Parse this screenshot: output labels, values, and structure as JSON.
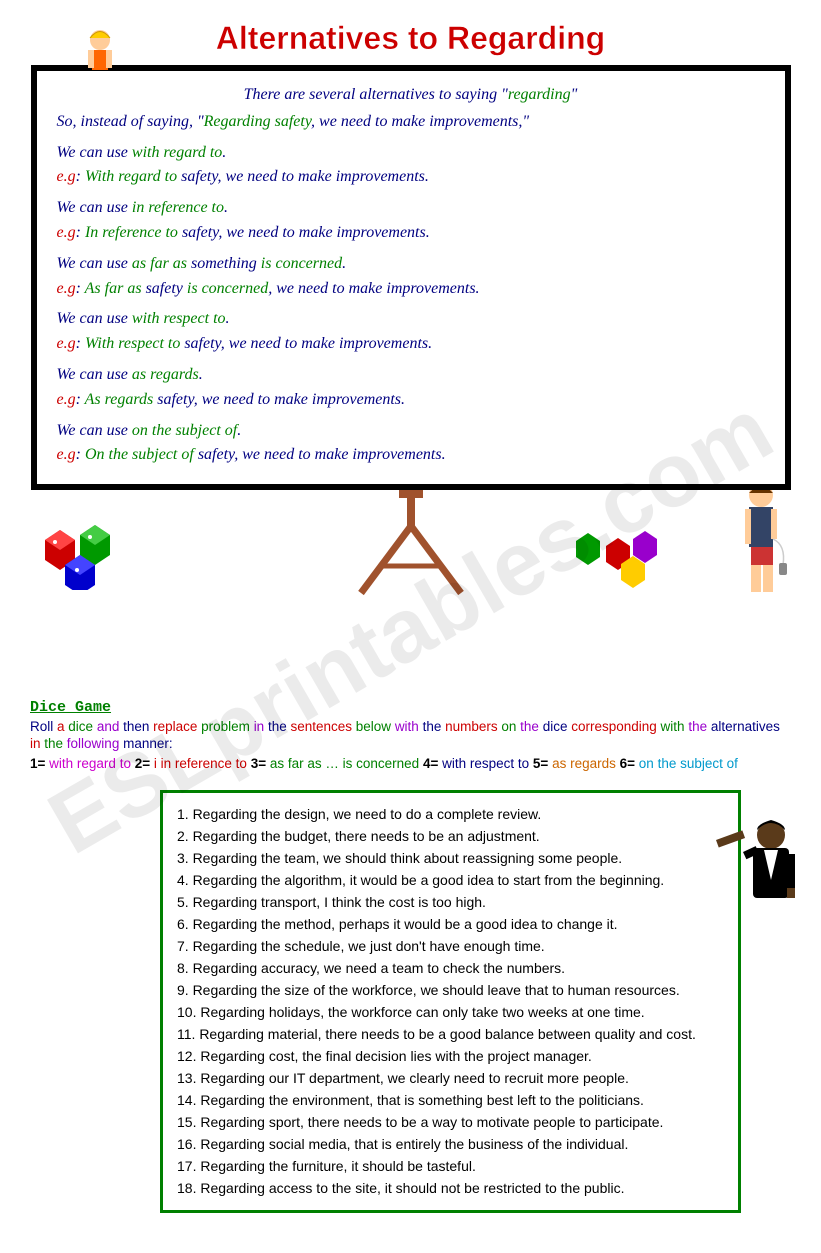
{
  "title": "Alternatives to Regarding",
  "watermark": "ESLprintables.com",
  "intro_prefix": "There are several alternatives to saying \"",
  "intro_keyword": "regarding",
  "intro_suffix": "\"",
  "example_lead": "So, instead of saying, \"",
  "example_green": "Regarding safety",
  "example_rest": ", we need to make improvements,\"",
  "alts": [
    {
      "lead_a": "We can use ",
      "phrase": "with regard to",
      "lead_b": ".",
      "eg_label": "e.g",
      "eg_green": "With regard to",
      "eg_rest": " safety, we need to make improvements."
    },
    {
      "lead_a": "We can use ",
      "phrase": "in reference to",
      "lead_b": ".",
      "eg_label": "e.g",
      "eg_green": "In reference to",
      "eg_rest": " safety, we need to make improvements."
    },
    {
      "lead_a": "We can use ",
      "phrase": "as far as",
      "mid": " something ",
      "phrase2": "is concerned",
      "lead_b": ".",
      "eg_label": "e.g",
      "eg_green": "As far as",
      "eg_mid": " safety ",
      "eg_green2": "is concerned",
      "eg_rest": ", we need to make improvements."
    },
    {
      "lead_a": "We can use ",
      "phrase": "with respect to",
      "lead_b": ".",
      "eg_label": "e.g",
      "eg_green": "With respect to",
      "eg_rest": " safety, we need to make improvements."
    },
    {
      "lead_a": "We can use ",
      "phrase": "as regards",
      "lead_b": ".",
      "eg_label": "e.g",
      "eg_green": "As regards",
      "eg_rest": " safety, we need to make improvements."
    },
    {
      "lead_a": "We can use ",
      "phrase": "on the subject of",
      "lead_b": ".",
      "eg_label": "e.g",
      "eg_green": "On the subject of",
      "eg_rest": " safety, we need to make improvements."
    }
  ],
  "dice": {
    "title": "Dice Game",
    "instr_parts": [
      "Roll ",
      "a ",
      "dice ",
      "and ",
      "then ",
      "replace ",
      "problem ",
      "in ",
      "the ",
      "sentences ",
      "below ",
      "with ",
      "the ",
      "numbers ",
      "on ",
      "the ",
      "dice ",
      "corresponding ",
      "with ",
      "the ",
      "alternatives ",
      "in ",
      "the ",
      "following ",
      "manner:"
    ],
    "instr_colors": [
      "#000080",
      "#cc0000",
      "#008000",
      "#9900cc",
      "#000080",
      "#cc0000",
      "#008000",
      "#9900cc",
      "#000080",
      "#cc0000",
      "#008000",
      "#9900cc",
      "#000080",
      "#cc0000",
      "#008000",
      "#9900cc",
      "#000080",
      "#cc0000",
      "#008000",
      "#9900cc",
      "#000080",
      "#cc0000",
      "#008000",
      "#9900cc",
      "#000080"
    ],
    "key": [
      {
        "n": "1=",
        "t": "  with regard to",
        "c": "#cc00cc"
      },
      {
        "n": "2=",
        "t": " i in reference to",
        "c": "#cc0000"
      },
      {
        "n": "3=",
        "t": " as far as … is concerned",
        "c": "#008000"
      },
      {
        "n": "4=",
        "t": " with respect to",
        "c": "#000080"
      },
      {
        "n": "5=",
        "t": " as regards",
        "c": "#cc6600"
      },
      {
        "n": "6=",
        "t": " on the subject of",
        "c": "#0099cc"
      }
    ]
  },
  "sentences": [
    "1. Regarding the design, we need to do a complete review.",
    "2. Regarding the budget, there needs to be an adjustment.",
    "3. Regarding the team, we should think about reassigning some people.",
    "4. Regarding the algorithm, it would be a good idea to start from the beginning.",
    "5. Regarding transport, I think the cost is too high.",
    "6. Regarding the method, perhaps it would be a good idea to change it.",
    "7. Regarding the schedule, we just don't have enough time.",
    "8. Regarding accuracy, we need a team to check the numbers.",
    "9. Regarding the size of the workforce, we should leave that to human resources.",
    "10. Regarding holidays, the workforce can only take two weeks at one time.",
    "11. Regarding material, there needs to be a good balance between quality and cost.",
    "12. Regarding cost, the final decision lies with the project manager.",
    "13. Regarding our IT department, we clearly need to recruit more people.",
    "14. Regarding the environment, that is something best left to the politicians.",
    "15. Regarding sport, there needs to be a way to motivate people to participate.",
    "16. Regarding social media, that is entirely the business of the individual.",
    "17. Regarding the furniture, it should be tasteful.",
    "18. Regarding access to the site, it should not be restricted to the public."
  ],
  "colors": {
    "title": "#cc0000",
    "board_border": "#000000",
    "navy": "#000080",
    "green": "#008000",
    "red": "#cc0000",
    "box_border": "#008000"
  }
}
